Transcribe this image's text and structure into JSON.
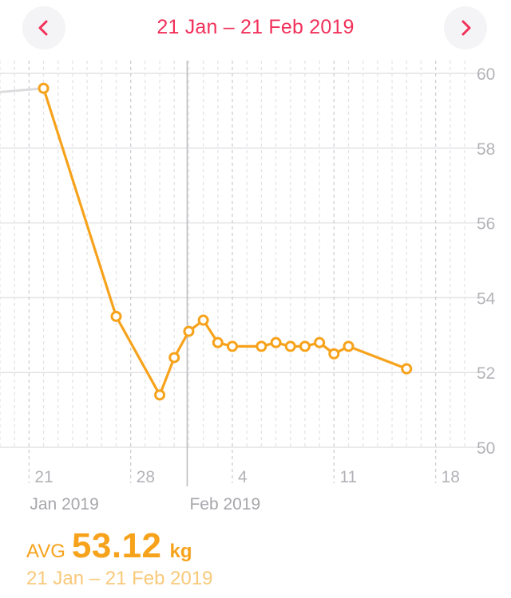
{
  "header": {
    "title": "21 Jan – 21 Feb 2019",
    "prev_icon": "chevron-left-icon",
    "next_icon": "chevron-right-icon",
    "accent_color": "#f2305a"
  },
  "chart_data": {
    "type": "line",
    "title": "",
    "xlabel": "",
    "ylabel": "",
    "x_range": [
      "2019-01-19",
      "2019-02-20"
    ],
    "ylim": [
      50,
      60
    ],
    "y_ticks": [
      50,
      52,
      54,
      56,
      58,
      60
    ],
    "y_axis_position": "right",
    "grid": true,
    "x_ticks": [
      {
        "date": "2019-01-21",
        "label": "21"
      },
      {
        "date": "2019-01-28",
        "label": "28"
      },
      {
        "date": "2019-02-04",
        "label": "4"
      },
      {
        "date": "2019-02-11",
        "label": "11"
      },
      {
        "date": "2019-02-18",
        "label": "18"
      }
    ],
    "month_labels": [
      {
        "date": "2019-01-21",
        "label": "Jan 2019"
      },
      {
        "date": "2019-02-01",
        "label": "Feb 2019"
      }
    ],
    "line_color": "#f7a21b",
    "lead_in_color": "#dcdcdf",
    "lead_in": {
      "date": "2019-01-10",
      "value": 59.2
    },
    "series": [
      {
        "values": [
          {
            "date": "2019-01-22",
            "value": 59.6
          },
          {
            "date": "2019-01-27",
            "value": 53.5
          },
          {
            "date": "2019-01-30",
            "value": 51.4
          },
          {
            "date": "2019-01-31",
            "value": 52.4
          },
          {
            "date": "2019-02-01",
            "value": 53.1
          },
          {
            "date": "2019-02-02",
            "value": 53.4
          },
          {
            "date": "2019-02-03",
            "value": 52.8
          },
          {
            "date": "2019-02-04",
            "value": 52.7
          },
          {
            "date": "2019-02-06",
            "value": 52.7
          },
          {
            "date": "2019-02-07",
            "value": 52.8
          },
          {
            "date": "2019-02-08",
            "value": 52.7
          },
          {
            "date": "2019-02-09",
            "value": 52.7
          },
          {
            "date": "2019-02-10",
            "value": 52.8
          },
          {
            "date": "2019-02-11",
            "value": 52.5
          },
          {
            "date": "2019-02-12",
            "value": 52.7
          },
          {
            "date": "2019-02-16",
            "value": 52.1
          }
        ]
      }
    ]
  },
  "summary": {
    "avg_label": "AVG",
    "avg_value": "53.12",
    "unit": "kg",
    "range": "21 Jan – 21 Feb 2019",
    "color": "#f7a21b"
  }
}
